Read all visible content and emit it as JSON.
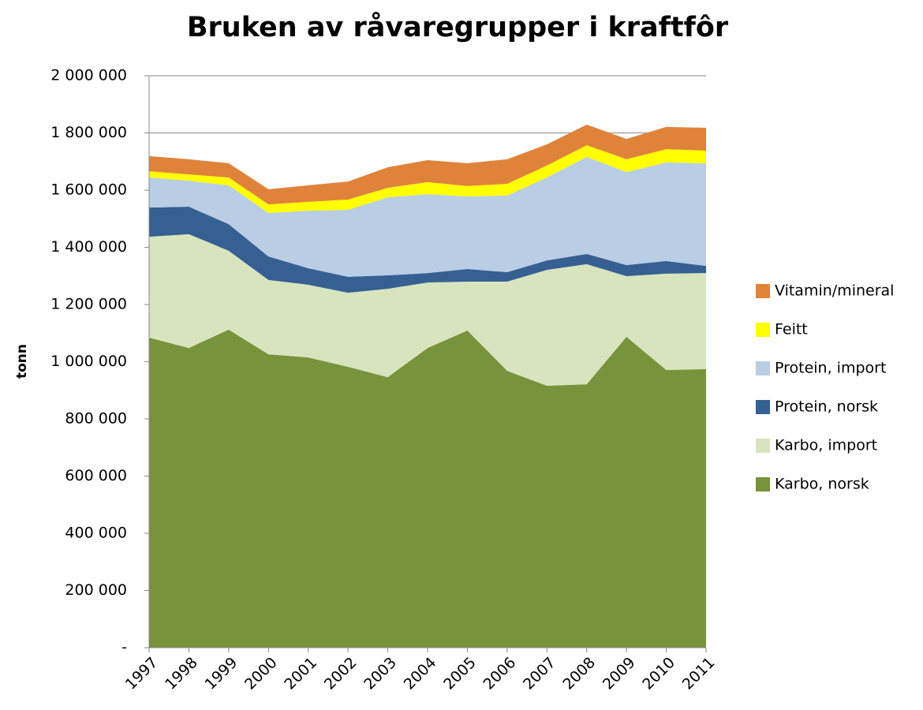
{
  "chart_data": {
    "type": "stacked_area",
    "title": "Bruken av råvaregrupper i kraftfôr",
    "y_label": "tonn",
    "categories": [
      "1997",
      "1998",
      "1999",
      "2000",
      "2001",
      "2002",
      "2003",
      "2004",
      "2005",
      "2006",
      "2007",
      "2008",
      "2009",
      "2010",
      "2011"
    ],
    "series": [
      {
        "name": "Karbo, norsk",
        "color": "#77933c",
        "values": [
          1084000,
          1048000,
          1112000,
          1026000,
          1015000,
          982000,
          946000,
          1048000,
          1109000,
          968000,
          916000,
          921000,
          1087000,
          971000,
          974000
        ]
      },
      {
        "name": "Karbo, import",
        "color": "#d7e4bd",
        "values": [
          353000,
          398000,
          276000,
          260000,
          254000,
          259000,
          309000,
          229000,
          171000,
          312000,
          405000,
          420000,
          212000,
          337000,
          336000
        ]
      },
      {
        "name": "Protein, norsk",
        "color": "#376092",
        "values": [
          102000,
          96000,
          93000,
          82000,
          58000,
          56000,
          47000,
          33000,
          44000,
          33000,
          33000,
          36000,
          39000,
          44000,
          25000
        ]
      },
      {
        "name": "Protein, import",
        "color": "#b9cde5",
        "values": [
          105000,
          91000,
          136000,
          152000,
          201000,
          234000,
          273000,
          276000,
          254000,
          268000,
          290000,
          339000,
          325000,
          345000,
          359000
        ]
      },
      {
        "name": "Feitt",
        "color": "#ffff00",
        "values": [
          22000,
          22000,
          27000,
          30000,
          31000,
          36000,
          33000,
          42000,
          36000,
          41000,
          42000,
          41000,
          45000,
          46000,
          44000
        ]
      },
      {
        "name": "Vitamin/mineral",
        "color": "#e0833a",
        "values": [
          53000,
          53000,
          50000,
          53000,
          58000,
          63000,
          72000,
          77000,
          80000,
          86000,
          74000,
          72000,
          71000,
          78000,
          80000
        ]
      }
    ],
    "ylim": [
      0,
      2000000
    ],
    "yticks": [
      {
        "value": 0,
        "label": "-"
      },
      {
        "value": 200000,
        "label": "200 000"
      },
      {
        "value": 400000,
        "label": "400 000"
      },
      {
        "value": 600000,
        "label": "600 000"
      },
      {
        "value": 800000,
        "label": "800 000"
      },
      {
        "value": 1000000,
        "label": "1 000 000"
      },
      {
        "value": 1200000,
        "label": "1 200 000"
      },
      {
        "value": 1400000,
        "label": "1 400 000"
      },
      {
        "value": 1600000,
        "label": "1 600 000"
      },
      {
        "value": 1800000,
        "label": "1 800 000"
      },
      {
        "value": 2000000,
        "label": "2 000 000"
      }
    ],
    "grid": true,
    "legend": "right"
  }
}
